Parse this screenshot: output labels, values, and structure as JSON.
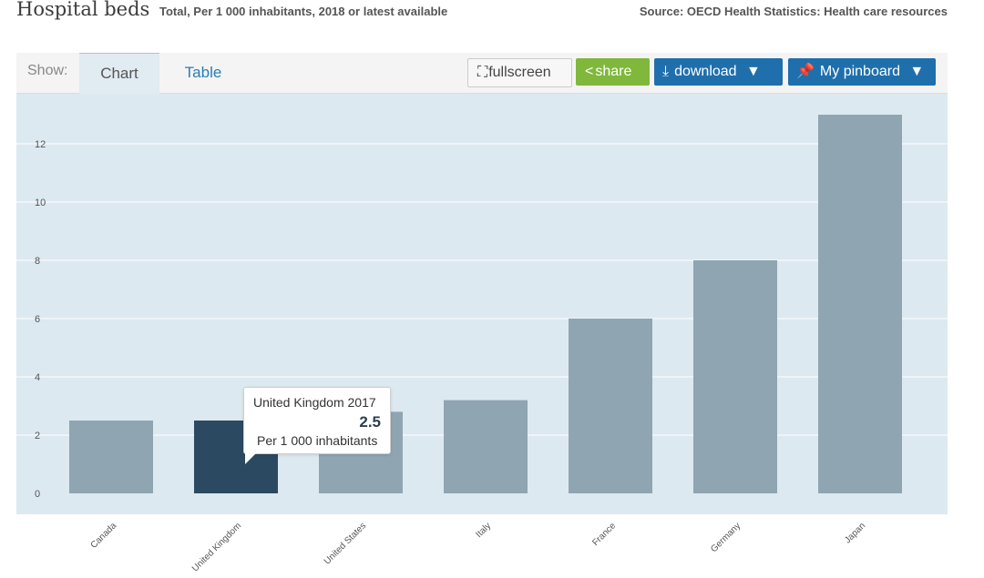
{
  "header": {
    "title": "Hospital beds",
    "subtitle": "Total, Per 1 000 inhabitants, 2018 or latest available",
    "source": "Source: OECD Health Statistics: Health care resources"
  },
  "toolbar": {
    "show_label": "Show:",
    "tabs": [
      {
        "label": "Chart",
        "active": true
      },
      {
        "label": "Table",
        "active": false
      }
    ],
    "fullscreen_label": "fullscreen",
    "share_label": "share",
    "download_label": "download",
    "pinboard_label": "My pinboard"
  },
  "colors": {
    "bar": "#8fa5b2",
    "bar_highlight": "#2b4a62",
    "plot_bg": "#dde9f0",
    "share": "#80b83c",
    "download": "#1f6fac"
  },
  "chart_data": {
    "type": "bar",
    "categories": [
      "Canada",
      "United Kingdom",
      "United States",
      "Italy",
      "France",
      "Germany",
      "Japan"
    ],
    "values": [
      2.5,
      2.5,
      2.8,
      3.2,
      6.0,
      8.0,
      13.0
    ],
    "highlight_index": 1,
    "title": "Hospital beds",
    "ylabel": "",
    "xlabel": "",
    "ylim": [
      0,
      13
    ],
    "yticks": [
      0,
      2,
      4,
      6,
      8,
      10,
      12
    ],
    "grid": true,
    "tooltip": {
      "label": "United Kingdom 2017",
      "value": "2.5",
      "unit": "Per 1 000 inhabitants"
    }
  }
}
